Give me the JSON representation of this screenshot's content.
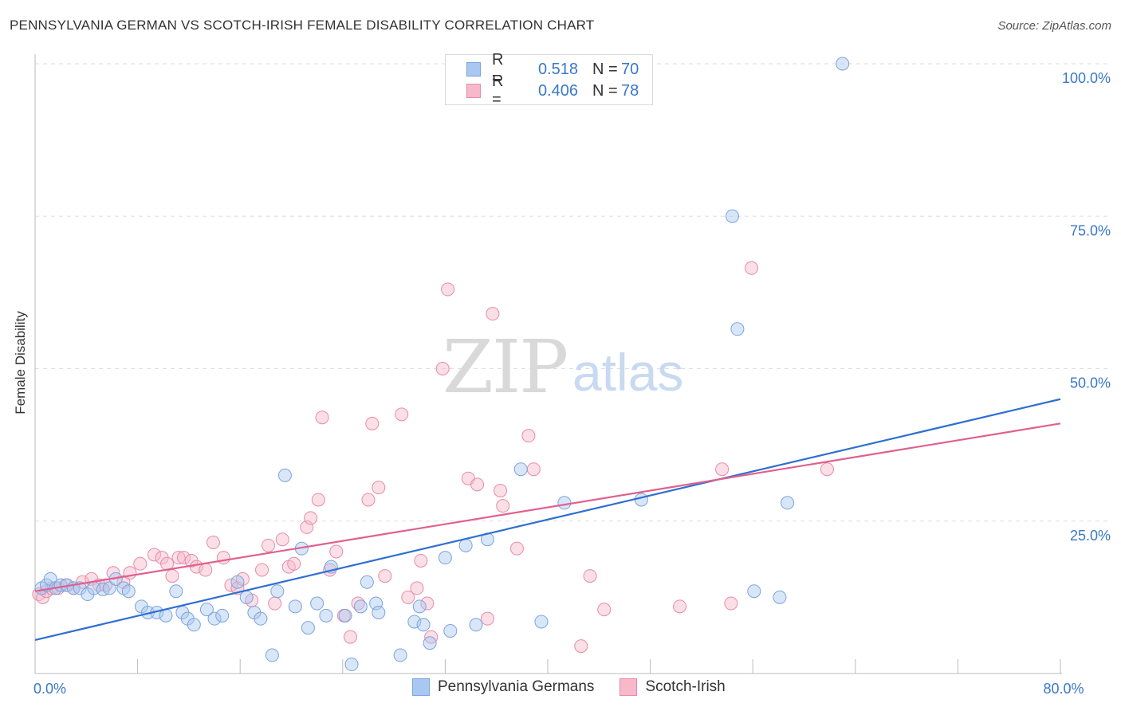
{
  "title": "PENNSYLVANIA GERMAN VS SCOTCH-IRISH FEMALE DISABILITY CORRELATION CHART",
  "source": "Source: ZipAtlas.com",
  "watermark": {
    "zip": "ZIP",
    "atlas": "atlas"
  },
  "legend": {
    "rows": [
      {
        "r_label": "R =",
        "r_value": "0.518",
        "n_label": "N =",
        "n_value": "70",
        "color": "#a9c7f0",
        "border": "#7aa5dd"
      },
      {
        "r_label": "R =",
        "r_value": "0.406",
        "n_label": "N =",
        "n_value": "78",
        "color": "#f7b8ca",
        "border": "#e98aa8"
      }
    ]
  },
  "bottom_legend": [
    {
      "label": "Pennsylvania Germans",
      "color": "#a9c7f0",
      "border": "#7aa5dd"
    },
    {
      "label": "Scotch-Irish",
      "color": "#f7b8ca",
      "border": "#e98aa8"
    }
  ],
  "colors": {
    "blue": "#3a78c9",
    "blue_line": "#2f6fd0",
    "pink_line": "#e0608e",
    "grid": "#dddddd",
    "tick_text": "#3a78c9"
  },
  "chart_data": {
    "type": "scatter",
    "title": "PENNSYLVANIA GERMAN VS SCOTCH-IRISH FEMALE DISABILITY CORRELATION CHART",
    "xlabel": "",
    "ylabel": "Female Disability",
    "xlim": [
      0,
      80
    ],
    "ylim": [
      0,
      100
    ],
    "x_tick_labels": [
      {
        "value": 0,
        "label": "0.0%"
      },
      {
        "value": 80,
        "label": "80.0%"
      }
    ],
    "y_tick_labels": [
      {
        "value": 25,
        "label": "25.0%"
      },
      {
        "value": 50,
        "label": "50.0%"
      },
      {
        "value": 75,
        "label": "75.0%"
      },
      {
        "value": 100,
        "label": "100.0%"
      }
    ],
    "grid": true,
    "series": [
      {
        "name": "Pennsylvania Germans",
        "color": "#a9c7f0",
        "trend": {
          "x": [
            0,
            80
          ],
          "y": [
            5.5,
            45
          ]
        },
        "points": [
          [
            0.5,
            14
          ],
          [
            0.9,
            14.5
          ],
          [
            1.2,
            15.5
          ],
          [
            1.6,
            14
          ],
          [
            2,
            14.5
          ],
          [
            2.5,
            14.5
          ],
          [
            3,
            14
          ],
          [
            3.5,
            14
          ],
          [
            4.1,
            13
          ],
          [
            4.6,
            14
          ],
          [
            5.3,
            13.8
          ],
          [
            5.8,
            14
          ],
          [
            6.3,
            15.5
          ],
          [
            6.9,
            14
          ],
          [
            7.3,
            13.5
          ],
          [
            8.3,
            11
          ],
          [
            8.8,
            10
          ],
          [
            9.5,
            10
          ],
          [
            10.2,
            9.5
          ],
          [
            11,
            13.5
          ],
          [
            11.5,
            10
          ],
          [
            11.9,
            9
          ],
          [
            12.4,
            8
          ],
          [
            13.4,
            10.5
          ],
          [
            14,
            9
          ],
          [
            14.6,
            9.5
          ],
          [
            15.8,
            15
          ],
          [
            16.5,
            12.5
          ],
          [
            17.1,
            10
          ],
          [
            17.6,
            9
          ],
          [
            18.5,
            3
          ],
          [
            18.9,
            13.5
          ],
          [
            19.5,
            32.5
          ],
          [
            20.3,
            11
          ],
          [
            20.8,
            20.5
          ],
          [
            21.3,
            7.5
          ],
          [
            22,
            11.5
          ],
          [
            22.7,
            9.5
          ],
          [
            23.1,
            17.5
          ],
          [
            24.2,
            9.5
          ],
          [
            24.7,
            1.5
          ],
          [
            25.4,
            11
          ],
          [
            25.9,
            15
          ],
          [
            26.6,
            11.5
          ],
          [
            26.8,
            10
          ],
          [
            28.5,
            3
          ],
          [
            29.6,
            8.5
          ],
          [
            30,
            11
          ],
          [
            30.3,
            8
          ],
          [
            30.8,
            5
          ],
          [
            32,
            19
          ],
          [
            32.4,
            7
          ],
          [
            33.6,
            21
          ],
          [
            34.4,
            8
          ],
          [
            35.3,
            22
          ],
          [
            37.9,
            33.5
          ],
          [
            39.5,
            8.5
          ],
          [
            41.3,
            28
          ],
          [
            47.3,
            28.5
          ],
          [
            54.4,
            75
          ],
          [
            54.8,
            56.5
          ],
          [
            56.1,
            13.5
          ],
          [
            58.1,
            12.5
          ],
          [
            58.7,
            28
          ],
          [
            63,
            100
          ]
        ]
      },
      {
        "name": "Scotch-Irish",
        "color": "#f7b8ca",
        "trend": {
          "x": [
            0,
            80
          ],
          "y": [
            13.5,
            41
          ]
        },
        "points": [
          [
            0.3,
            13
          ],
          [
            0.6,
            12.5
          ],
          [
            0.9,
            13.5
          ],
          [
            1.3,
            14
          ],
          [
            1.8,
            14
          ],
          [
            2.4,
            14.5
          ],
          [
            3,
            14
          ],
          [
            3.7,
            15
          ],
          [
            4.4,
            15.5
          ],
          [
            5,
            14.5
          ],
          [
            5.5,
            14.5
          ],
          [
            6.1,
            16.5
          ],
          [
            6.9,
            15
          ],
          [
            7.4,
            16.5
          ],
          [
            8.2,
            18
          ],
          [
            9.3,
            19.5
          ],
          [
            9.9,
            19
          ],
          [
            10.3,
            18
          ],
          [
            10.7,
            16
          ],
          [
            11.2,
            19
          ],
          [
            11.6,
            19
          ],
          [
            12.2,
            18.5
          ],
          [
            12.6,
            17.5
          ],
          [
            13.3,
            17
          ],
          [
            13.9,
            21.5
          ],
          [
            14.7,
            19
          ],
          [
            15.3,
            14.5
          ],
          [
            15.8,
            14
          ],
          [
            16.2,
            15.5
          ],
          [
            16.9,
            12
          ],
          [
            17.7,
            17
          ],
          [
            18.2,
            21
          ],
          [
            18.7,
            11.5
          ],
          [
            19.3,
            22
          ],
          [
            19.8,
            17.5
          ],
          [
            20.2,
            18
          ],
          [
            21.2,
            24
          ],
          [
            21.5,
            25.5
          ],
          [
            22.1,
            28.5
          ],
          [
            22.4,
            42
          ],
          [
            23,
            17
          ],
          [
            23.5,
            20
          ],
          [
            24.1,
            9.5
          ],
          [
            24.6,
            6
          ],
          [
            25.2,
            11.5
          ],
          [
            26,
            28.5
          ],
          [
            26.3,
            41
          ],
          [
            26.8,
            30.5
          ],
          [
            27.3,
            16
          ],
          [
            28.6,
            42.5
          ],
          [
            29.1,
            12.5
          ],
          [
            29.8,
            14
          ],
          [
            30.1,
            18.5
          ],
          [
            30.6,
            11.5
          ],
          [
            30.9,
            6
          ],
          [
            31.8,
            50
          ],
          [
            32.2,
            63
          ],
          [
            33.8,
            32
          ],
          [
            34.5,
            31
          ],
          [
            35.3,
            9
          ],
          [
            35.7,
            59
          ],
          [
            36.3,
            30
          ],
          [
            36.5,
            27.5
          ],
          [
            37.6,
            20.5
          ],
          [
            38.5,
            39
          ],
          [
            38.9,
            33.5
          ],
          [
            42.6,
            4.5
          ],
          [
            43.3,
            16
          ],
          [
            44.4,
            10.5
          ],
          [
            50.3,
            11
          ],
          [
            53.6,
            33.5
          ],
          [
            54.3,
            11.5
          ],
          [
            55.9,
            66.5
          ],
          [
            61.8,
            33.5
          ]
        ]
      }
    ]
  }
}
